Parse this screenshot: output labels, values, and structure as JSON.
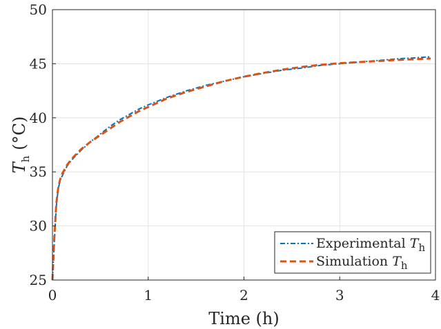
{
  "chart_data": {
    "type": "line",
    "title": "",
    "xlabel": "Time (h)",
    "ylabel": {
      "symbol": "T",
      "subscript": "h",
      "unit": "(°C)"
    },
    "xlim": [
      0,
      4
    ],
    "ylim": [
      25,
      50
    ],
    "x_ticks": [
      0,
      1,
      2,
      3,
      4
    ],
    "y_ticks": [
      25,
      30,
      35,
      40,
      45,
      50
    ],
    "grid": true,
    "legend_position": "bottom-right",
    "series": [
      {
        "name": "Experimental",
        "name_subscript": "h",
        "name_symbol": "T",
        "color": "#0072BD",
        "style": "dash-dot",
        "x": [
          0,
          0.02,
          0.04,
          0.06,
          0.08,
          0.1,
          0.15,
          0.2,
          0.3,
          0.4,
          0.5,
          0.6,
          0.7,
          0.8,
          0.9,
          1.0,
          1.2,
          1.4,
          1.6,
          1.8,
          2.0,
          2.2,
          2.4,
          2.6,
          2.8,
          3.0,
          3.2,
          3.4,
          3.6,
          3.8,
          3.95
        ],
        "y": [
          25.0,
          28.6,
          31.8,
          33.4,
          34.2,
          34.6,
          35.5,
          36.1,
          37.0,
          37.8,
          38.5,
          39.2,
          39.8,
          40.3,
          40.8,
          41.2,
          41.9,
          42.5,
          43.0,
          43.4,
          43.8,
          44.1,
          44.4,
          44.6,
          44.85,
          45.0,
          45.15,
          45.3,
          45.45,
          45.55,
          45.65
        ]
      },
      {
        "name": "Simulation",
        "name_subscript": "h",
        "name_symbol": "T",
        "color": "#D95319",
        "style": "dashed",
        "x": [
          0,
          0.02,
          0.04,
          0.06,
          0.08,
          0.1,
          0.15,
          0.2,
          0.3,
          0.4,
          0.5,
          0.6,
          0.7,
          0.8,
          0.9,
          1.0,
          1.2,
          1.4,
          1.6,
          1.8,
          2.0,
          2.2,
          2.4,
          2.6,
          2.8,
          3.0,
          3.2,
          3.4,
          3.6,
          3.8,
          3.95
        ],
        "y": [
          25.0,
          29.0,
          32.0,
          33.5,
          34.3,
          34.8,
          35.6,
          36.2,
          37.1,
          37.8,
          38.4,
          39.0,
          39.6,
          40.1,
          40.6,
          41.0,
          41.8,
          42.4,
          42.9,
          43.4,
          43.8,
          44.15,
          44.45,
          44.7,
          44.9,
          45.05,
          45.15,
          45.25,
          45.35,
          45.42,
          45.48
        ]
      }
    ]
  }
}
